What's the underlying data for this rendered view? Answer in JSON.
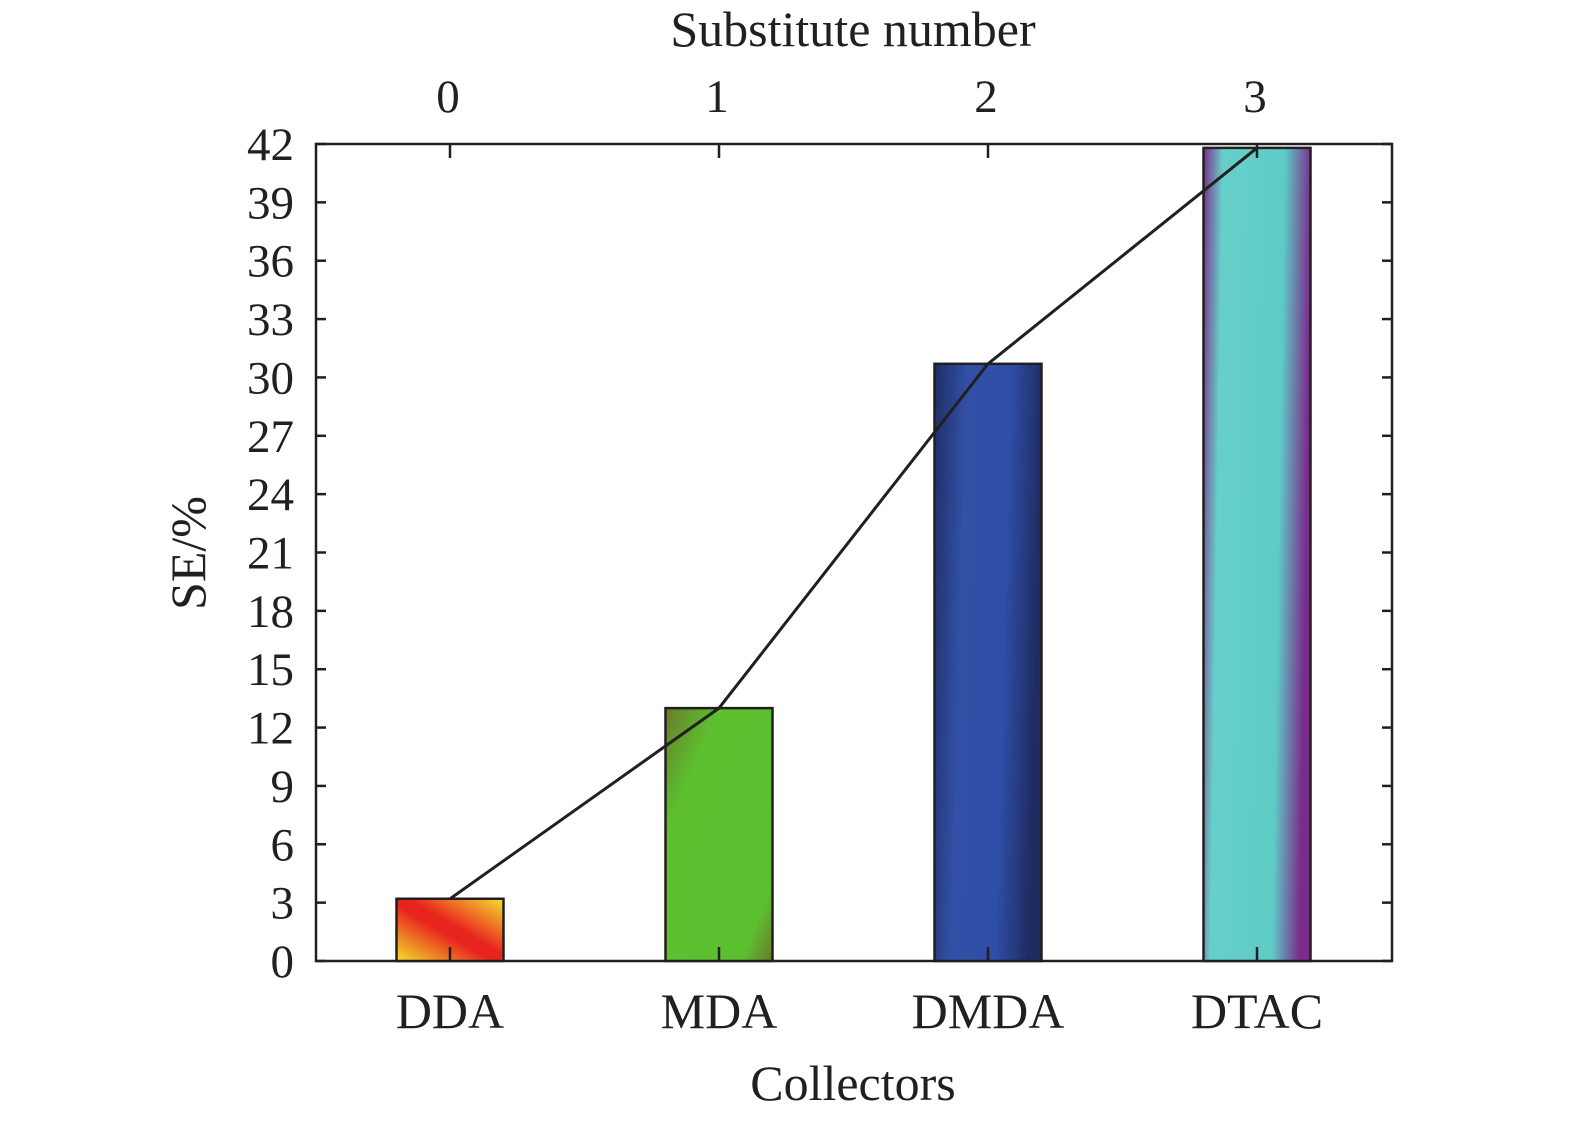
{
  "chart_data": {
    "type": "bar",
    "xlabel": "Collectors",
    "ylabel": "SE/%",
    "top_xlabel": "Substitute number",
    "categories": [
      "DDA",
      "MDA",
      "DMDA",
      "DTAC"
    ],
    "top_ticks": [
      "0",
      "1",
      "2",
      "3"
    ],
    "values": [
      3.2,
      13.0,
      30.7,
      41.8
    ],
    "line_overlay": true,
    "ylim": [
      0,
      42
    ],
    "yticks": [
      "0",
      "3",
      "6",
      "9",
      "12",
      "15",
      "18",
      "21",
      "24",
      "27",
      "30",
      "33",
      "36",
      "39",
      "42"
    ],
    "grid": false,
    "legend": "none",
    "colors": {
      "DDA": [
        "#f5e22a",
        "#e8231e"
      ],
      "MDA": [
        "#5cc02f",
        "#6a7a2a"
      ],
      "DMDA": [
        "#3050a8",
        "#1f2f6a"
      ],
      "DTAC": [
        "#66d1cb",
        "#7a2c8c"
      ],
      "line": "#231f20",
      "axis": "#231f20"
    }
  }
}
